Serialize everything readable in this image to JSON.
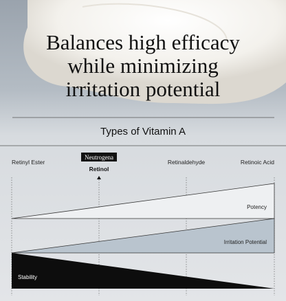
{
  "headline": [
    "Balances high efficacy",
    "while minimizing",
    "irritation potential"
  ],
  "subtitle": "Types of Vitamin A",
  "stages": [
    {
      "label": "Retinyl Ester"
    },
    {
      "brand": "Neutrogena",
      "label": "Retinol"
    },
    {
      "label": "Retinaldehyde"
    },
    {
      "label": "Retinoic Acid"
    }
  ],
  "bands": {
    "potency": "Potency",
    "irritation": "Irritation Potential",
    "stability": "Stability"
  }
}
